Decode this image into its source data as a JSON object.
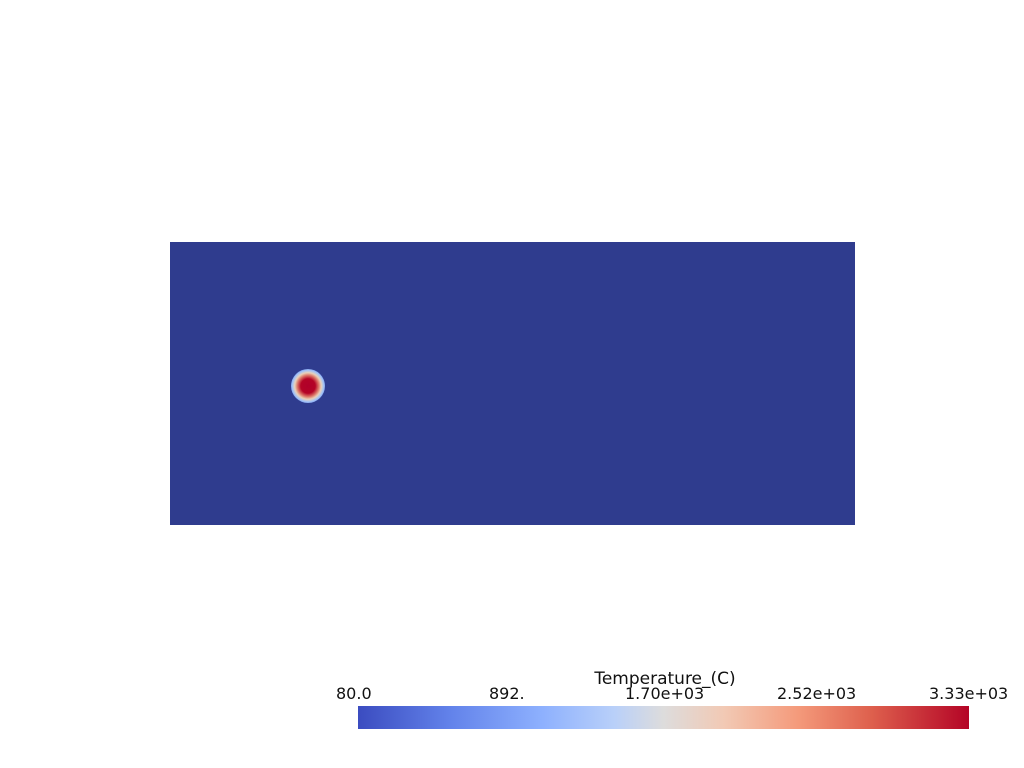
{
  "scalar_bar": {
    "title": "Temperature_(C)",
    "ticks": [
      "80.0",
      "892.",
      "1.70e+03",
      "2.52e+03",
      "3.33e+03"
    ],
    "range": [
      80.0,
      3330.0
    ],
    "colormap": "coolwarm",
    "colors": {
      "low": "#3b4cc0",
      "mid": "#dddcdc",
      "high": "#b40426"
    }
  },
  "scene": {
    "background": "#ffffff",
    "domain_color": "#2f3c8e",
    "hotspot_color": "#b40426"
  }
}
